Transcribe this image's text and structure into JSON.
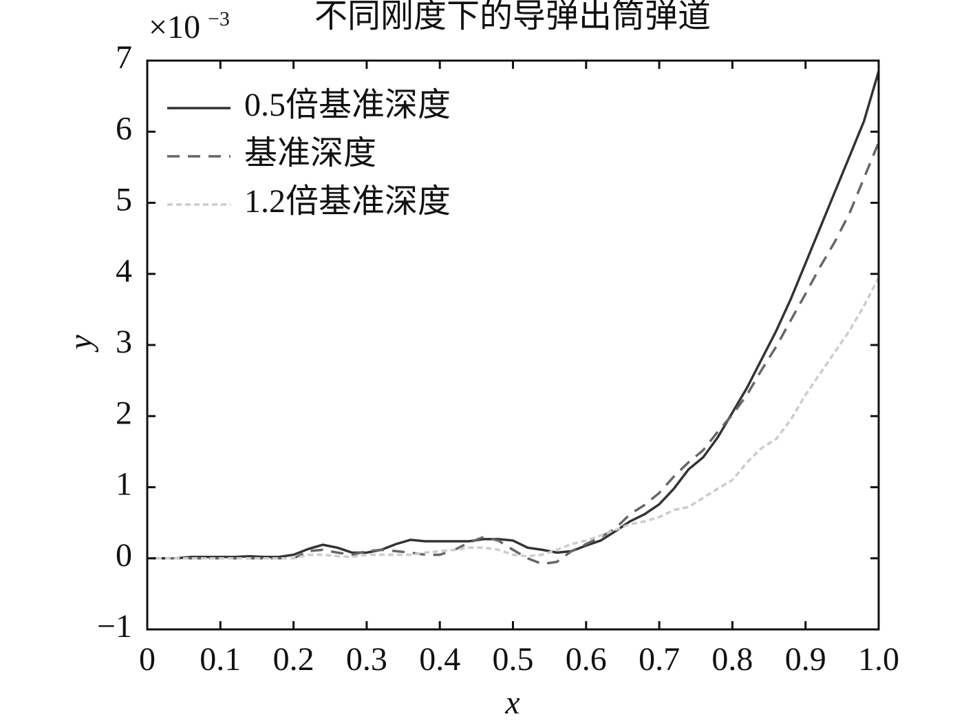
{
  "chart_data": {
    "type": "line",
    "title": "不同刚度下的导弹出筒弹道",
    "xlabel": "x",
    "ylabel": "y",
    "y_multiplier": "×10",
    "y_exponent": "−3",
    "x": [
      0,
      0.02,
      0.04,
      0.06,
      0.08,
      0.1,
      0.12,
      0.14,
      0.16,
      0.18,
      0.2,
      0.22,
      0.24,
      0.26,
      0.28,
      0.3,
      0.32,
      0.34,
      0.36,
      0.38,
      0.4,
      0.42,
      0.44,
      0.46,
      0.48,
      0.5,
      0.52,
      0.54,
      0.56,
      0.58,
      0.6,
      0.62,
      0.64,
      0.66,
      0.68,
      0.7,
      0.72,
      0.74,
      0.76,
      0.78,
      0.8,
      0.82,
      0.84,
      0.86,
      0.88,
      0.9,
      0.92,
      0.94,
      0.96,
      0.98,
      1.0
    ],
    "series": [
      {
        "name": "0.5倍基准深度",
        "color": "#333333",
        "dash": "none",
        "values": [
          0,
          0,
          0,
          0.02,
          0.02,
          0.02,
          0.02,
          0.03,
          0.02,
          0.02,
          0.05,
          0.13,
          0.19,
          0.15,
          0.08,
          0.08,
          0.12,
          0.2,
          0.26,
          0.24,
          0.24,
          0.24,
          0.24,
          0.27,
          0.27,
          0.25,
          0.15,
          0.12,
          0.08,
          0.1,
          0.18,
          0.25,
          0.38,
          0.52,
          0.62,
          0.76,
          0.98,
          1.25,
          1.42,
          1.7,
          2.05,
          2.4,
          2.8,
          3.2,
          3.65,
          4.15,
          4.65,
          5.15,
          5.65,
          6.15,
          6.85
        ]
      },
      {
        "name": "基准深度",
        "color": "#666666",
        "dash": "18 12",
        "values": [
          0,
          0,
          0,
          0,
          0,
          0,
          0,
          0,
          0,
          0,
          0,
          0.1,
          0.12,
          0.08,
          0.05,
          0.1,
          0.12,
          0.1,
          0.08,
          0.05,
          0.05,
          0.12,
          0.22,
          0.3,
          0.25,
          0.12,
          0,
          -0.08,
          -0.05,
          0.1,
          0.2,
          0.3,
          0.42,
          0.62,
          0.75,
          0.92,
          1.15,
          1.35,
          1.52,
          1.78,
          2.02,
          2.3,
          2.65,
          2.98,
          3.35,
          3.72,
          4.1,
          4.45,
          4.85,
          5.35,
          5.85
        ]
      },
      {
        "name": "1.2倍基准深度",
        "color": "#cccccc",
        "dash": "8 5",
        "values": [
          0,
          0,
          0,
          0,
          0,
          0,
          0,
          0,
          0,
          0,
          0,
          0.05,
          0.05,
          0.03,
          0.02,
          0.05,
          0.05,
          0.05,
          0.05,
          0.08,
          0.1,
          0.12,
          0.15,
          0.15,
          0.12,
          0.05,
          0.03,
          0.05,
          0.12,
          0.2,
          0.25,
          0.32,
          0.4,
          0.48,
          0.52,
          0.58,
          0.68,
          0.72,
          0.85,
          0.98,
          1.1,
          1.35,
          1.55,
          1.68,
          1.95,
          2.3,
          2.6,
          2.9,
          3.2,
          3.55,
          3.95
        ]
      }
    ],
    "xlim": [
      0,
      1
    ],
    "ylim": [
      -1,
      7
    ],
    "xticks": [
      0,
      0.1,
      0.2,
      0.3,
      0.4,
      0.5,
      0.6,
      0.7,
      0.8,
      0.9,
      {
        "value": 1,
        "label": "1.0"
      }
    ],
    "yticks": [
      {
        "value": -1,
        "label": "−1"
      },
      0,
      1,
      2,
      3,
      4,
      5,
      6,
      7
    ],
    "legend": "upper-left",
    "grid": false
  }
}
